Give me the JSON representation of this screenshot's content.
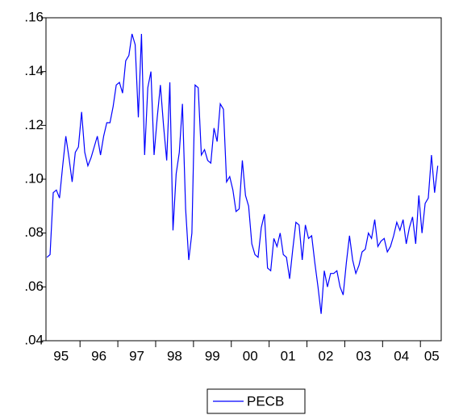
{
  "chart_data": {
    "type": "line",
    "x": [
      1995.125,
      1995.208,
      1995.292,
      1995.375,
      1995.458,
      1995.542,
      1995.625,
      1995.708,
      1995.792,
      1995.875,
      1995.958,
      1996.042,
      1996.125,
      1996.208,
      1996.292,
      1996.375,
      1996.458,
      1996.542,
      1996.625,
      1996.708,
      1996.792,
      1996.875,
      1996.958,
      1997.042,
      1997.125,
      1997.208,
      1997.292,
      1997.375,
      1997.458,
      1997.542,
      1997.625,
      1997.708,
      1997.792,
      1997.875,
      1997.958,
      1998.042,
      1998.125,
      1998.208,
      1998.292,
      1998.375,
      1998.458,
      1998.542,
      1998.625,
      1998.708,
      1998.792,
      1998.875,
      1998.958,
      1999.042,
      1999.125,
      1999.208,
      1999.292,
      1999.375,
      1999.458,
      1999.542,
      1999.625,
      1999.708,
      1999.792,
      1999.875,
      1999.958,
      2000.042,
      2000.125,
      2000.208,
      2000.292,
      2000.375,
      2000.458,
      2000.542,
      2000.625,
      2000.708,
      2000.792,
      2000.875,
      2000.958,
      2001.042,
      2001.125,
      2001.208,
      2001.292,
      2001.375,
      2001.458,
      2001.542,
      2001.625,
      2001.708,
      2001.792,
      2001.875,
      2001.958,
      2002.042,
      2002.125,
      2002.208,
      2002.292,
      2002.375,
      2002.458,
      2002.542,
      2002.625,
      2002.708,
      2002.792,
      2002.875,
      2002.958,
      2003.042,
      2003.125,
      2003.208,
      2003.292,
      2003.375,
      2003.458,
      2003.542,
      2003.625,
      2003.708,
      2003.792,
      2003.875,
      2003.958,
      2004.042,
      2004.125,
      2004.208,
      2004.292,
      2004.375,
      2004.458,
      2004.542,
      2004.625,
      2004.708,
      2004.792,
      2004.875,
      2004.958,
      2005.042,
      2005.125,
      2005.208,
      2005.292,
      2005.375,
      2005.458
    ],
    "series": [
      {
        "name": "PECB",
        "color": "#0000ff",
        "values": [
          0.071,
          0.072,
          0.095,
          0.096,
          0.093,
          0.105,
          0.116,
          0.108,
          0.099,
          0.11,
          0.112,
          0.125,
          0.11,
          0.105,
          0.108,
          0.112,
          0.116,
          0.109,
          0.116,
          0.121,
          0.121,
          0.127,
          0.135,
          0.136,
          0.132,
          0.144,
          0.146,
          0.154,
          0.15,
          0.123,
          0.154,
          0.109,
          0.134,
          0.14,
          0.109,
          0.123,
          0.135,
          0.12,
          0.107,
          0.136,
          0.081,
          0.102,
          0.11,
          0.128,
          0.089,
          0.07,
          0.08,
          0.135,
          0.134,
          0.109,
          0.111,
          0.107,
          0.106,
          0.119,
          0.114,
          0.128,
          0.126,
          0.099,
          0.101,
          0.096,
          0.088,
          0.089,
          0.107,
          0.094,
          0.09,
          0.076,
          0.072,
          0.071,
          0.082,
          0.087,
          0.067,
          0.066,
          0.078,
          0.075,
          0.08,
          0.072,
          0.071,
          0.063,
          0.074,
          0.084,
          0.083,
          0.07,
          0.083,
          0.078,
          0.079,
          0.069,
          0.06,
          0.05,
          0.066,
          0.06,
          0.065,
          0.065,
          0.066,
          0.06,
          0.057,
          0.069,
          0.079,
          0.07,
          0.065,
          0.068,
          0.073,
          0.074,
          0.08,
          0.078,
          0.085,
          0.075,
          0.077,
          0.078,
          0.073,
          0.075,
          0.079,
          0.084,
          0.081,
          0.085,
          0.076,
          0.082,
          0.086,
          0.076,
          0.094,
          0.08,
          0.091,
          0.093,
          0.109,
          0.095,
          0.105
        ]
      }
    ],
    "xlim": [
      1995.1,
      2005.55
    ],
    "xticks": [
      1996,
      1997,
      1998,
      1999,
      2000,
      2001,
      2002,
      2003,
      2004,
      2005
    ],
    "xtick_labels": [
      {
        "value": 1995.5,
        "label": "95"
      },
      {
        "value": 1996.5,
        "label": "96"
      },
      {
        "value": 1997.5,
        "label": "97"
      },
      {
        "value": 1998.5,
        "label": "98"
      },
      {
        "value": 1999.5,
        "label": "99"
      },
      {
        "value": 2000.5,
        "label": "00"
      },
      {
        "value": 2001.5,
        "label": "01"
      },
      {
        "value": 2002.5,
        "label": "02"
      },
      {
        "value": 2003.5,
        "label": "03"
      },
      {
        "value": 2004.5,
        "label": "04"
      },
      {
        "value": 2005.3,
        "label": "05"
      }
    ],
    "ylim": [
      0.04,
      0.16
    ],
    "yticks": [
      {
        "value": 0.04,
        "label": ".04"
      },
      {
        "value": 0.06,
        "label": ".06"
      },
      {
        "value": 0.08,
        "label": ".08"
      },
      {
        "value": 0.1,
        "label": ".10"
      },
      {
        "value": 0.12,
        "label": ".12"
      },
      {
        "value": 0.14,
        "label": ".14"
      },
      {
        "value": 0.16,
        "label": ".16"
      }
    ],
    "legend": "bottom"
  }
}
